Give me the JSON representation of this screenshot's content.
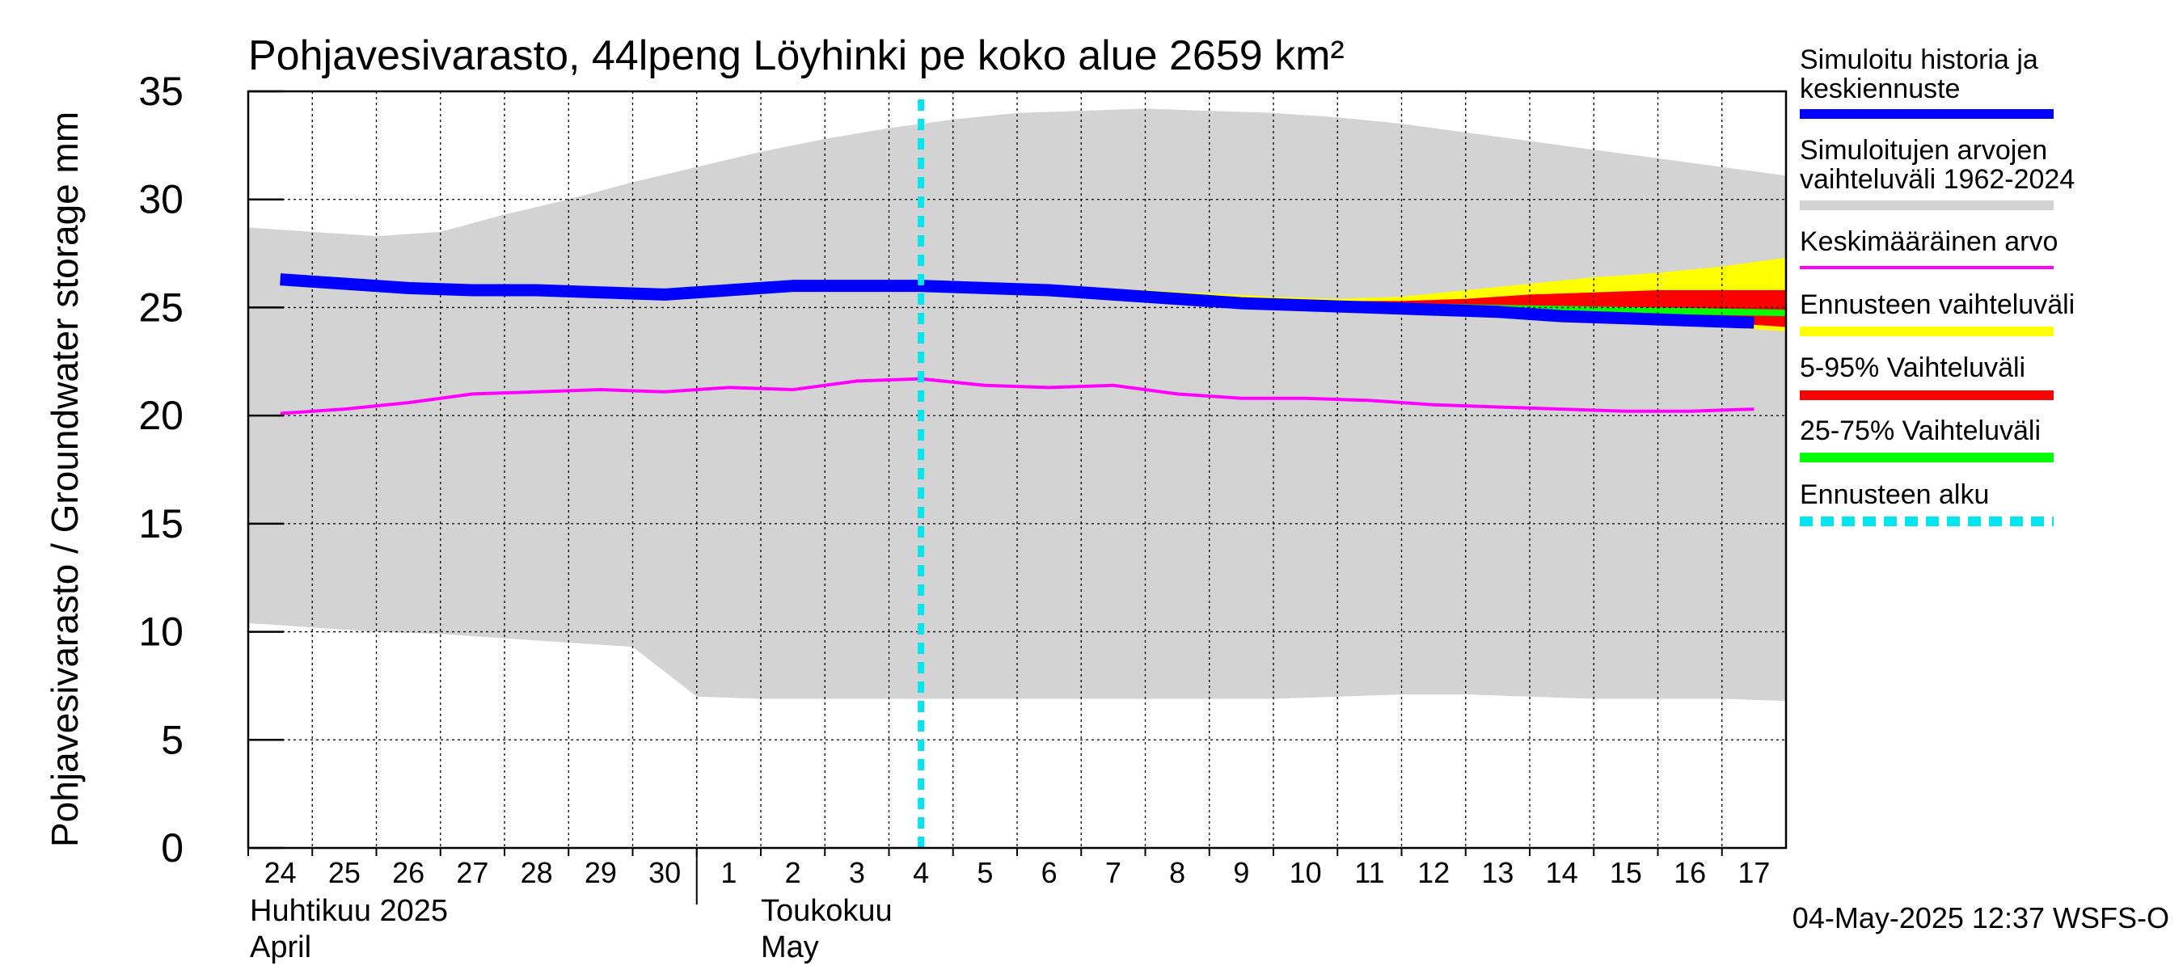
{
  "chart_data": {
    "type": "area",
    "title": "Pohjavesivarasto, 44lpeng Löyhinki pe koko alue 2659 km²",
    "ylabel": "Pohjavesivarasto / Groundwater storage   mm",
    "ylim": [
      0,
      35
    ],
    "yticks": [
      "0",
      "5",
      "10",
      "15",
      "20",
      "25",
      "30",
      "35"
    ],
    "grid": true,
    "legend_position": "right",
    "x_day_labels": [
      "24",
      "25",
      "26",
      "27",
      "28",
      "29",
      "30",
      "1",
      "2",
      "3",
      "4",
      "5",
      "6",
      "7",
      "8",
      "9",
      "10",
      "11",
      "12",
      "13",
      "14",
      "15",
      "16",
      "17"
    ],
    "x_dates": [
      "2025-04-24",
      "2025-04-25",
      "2025-04-26",
      "2025-04-27",
      "2025-04-28",
      "2025-04-29",
      "2025-04-30",
      "2025-05-01",
      "2025-05-02",
      "2025-05-03",
      "2025-05-04",
      "2025-05-05",
      "2025-05-06",
      "2025-05-07",
      "2025-05-08",
      "2025-05-09",
      "2025-05-10",
      "2025-05-11",
      "2025-05-12",
      "2025-05-13",
      "2025-05-14",
      "2025-05-15",
      "2025-05-16",
      "2025-05-17"
    ],
    "month_labels": [
      {
        "fi": "Huhtikuu  2025",
        "en": "April"
      },
      {
        "fi": "Toukokuu",
        "en": "May"
      }
    ],
    "forecast_start": "2025-05-04",
    "series": [
      {
        "name": "Simuloitu historia ja keskiennuste",
        "color": "#0000ff",
        "values": [
          26.3,
          26.1,
          25.9,
          25.8,
          25.8,
          25.7,
          25.6,
          25.8,
          26.0,
          26.0,
          26.0,
          25.9,
          25.8,
          25.6,
          25.4,
          25.2,
          25.1,
          25.0,
          24.9,
          24.8,
          24.6,
          24.5,
          24.4,
          24.3
        ]
      },
      {
        "name": "Keskimääräinen arvo",
        "color": "#ff00ff",
        "values": [
          20.1,
          20.3,
          20.6,
          21.0,
          21.1,
          21.2,
          21.1,
          21.3,
          21.2,
          21.6,
          21.7,
          21.4,
          21.3,
          21.4,
          21.0,
          20.8,
          20.8,
          20.7,
          20.5,
          20.4,
          20.3,
          20.2,
          20.2,
          20.3
        ]
      }
    ],
    "ranges": [
      {
        "name": "Simuloitujen arvojen vaihteluväli 1962-2024",
        "color": "#d3d3d3",
        "x": [
          "2025-04-24",
          "2025-04-25",
          "2025-04-26",
          "2025-04-27",
          "2025-04-28",
          "2025-04-29",
          "2025-04-30",
          "2025-05-01",
          "2025-05-02",
          "2025-05-03",
          "2025-05-04",
          "2025-05-05",
          "2025-05-06",
          "2025-05-07",
          "2025-05-08",
          "2025-05-09",
          "2025-05-10",
          "2025-05-11",
          "2025-05-12",
          "2025-05-13",
          "2025-05-14",
          "2025-05-15",
          "2025-05-16",
          "2025-05-17",
          "2025-05-18"
        ],
        "upper": [
          28.7,
          28.5,
          28.3,
          28.5,
          29.3,
          30.0,
          30.8,
          31.5,
          32.2,
          32.8,
          33.3,
          33.7,
          34.0,
          34.1,
          34.2,
          34.1,
          34.0,
          33.8,
          33.5,
          33.1,
          32.7,
          32.3,
          31.9,
          31.5,
          31.1
        ],
        "lower": [
          10.4,
          10.2,
          10.0,
          9.9,
          9.7,
          9.5,
          9.3,
          7.0,
          6.9,
          6.9,
          6.9,
          6.9,
          6.9,
          6.9,
          6.9,
          6.9,
          6.9,
          7.0,
          7.1,
          7.1,
          7.0,
          6.9,
          6.9,
          6.9,
          6.8
        ]
      },
      {
        "name": "Ennusteen vaihteluväli",
        "color": "#ffff00",
        "x": [
          "2025-05-04",
          "2025-05-06",
          "2025-05-08",
          "2025-05-10",
          "2025-05-11",
          "2025-05-12",
          "2025-05-13",
          "2025-05-14",
          "2025-05-15",
          "2025-05-16",
          "2025-05-17",
          "2025-05-18"
        ],
        "upper": [
          26.1,
          26.0,
          25.8,
          25.5,
          25.4,
          25.5,
          25.8,
          26.1,
          26.4,
          26.6,
          26.9,
          27.3
        ],
        "lower": [
          25.9,
          25.8,
          25.5,
          25.2,
          25.1,
          25.0,
          24.9,
          24.7,
          24.5,
          24.3,
          24.1,
          23.9
        ]
      },
      {
        "name": "5-95% Vaihteluväli",
        "color": "#ff0000",
        "x": [
          "2025-05-04",
          "2025-05-06",
          "2025-05-08",
          "2025-05-10",
          "2025-05-11",
          "2025-05-12",
          "2025-05-13",
          "2025-05-14",
          "2025-05-15",
          "2025-05-16",
          "2025-05-17",
          "2025-05-18"
        ],
        "upper": [
          26.0,
          25.9,
          25.6,
          25.4,
          25.3,
          25.3,
          25.4,
          25.6,
          25.7,
          25.8,
          25.8,
          25.8
        ],
        "lower": [
          25.9,
          25.8,
          25.5,
          25.2,
          25.1,
          25.0,
          24.9,
          24.7,
          24.6,
          24.5,
          24.3,
          24.1
        ]
      },
      {
        "name": "25-75% Vaihteluväli",
        "color": "#00ff00",
        "x": [
          "2025-05-04",
          "2025-05-06",
          "2025-05-08",
          "2025-05-10",
          "2025-05-12",
          "2025-05-14",
          "2025-05-16",
          "2025-05-18"
        ],
        "upper": [
          26.0,
          25.9,
          25.6,
          25.3,
          25.2,
          25.1,
          25.0,
          24.9
        ],
        "lower": [
          25.9,
          25.8,
          25.5,
          25.2,
          25.0,
          24.9,
          24.7,
          24.6
        ]
      }
    ],
    "legend": [
      {
        "label": "Simuloitu historia ja keskiennuste",
        "color": "#0000ff",
        "style": "thick"
      },
      {
        "label": "Simuloitujen arvojen vaihteluväli 1962-2024",
        "color": "#d3d3d3",
        "style": "thick"
      },
      {
        "label": "Keskimääräinen arvo",
        "color": "#ff00ff",
        "style": "thin"
      },
      {
        "label": "Ennusteen vaihteluväli",
        "color": "#ffff00",
        "style": "thick"
      },
      {
        "label": "5-95% Vaihteluväli",
        "color": "#ff0000",
        "style": "thick"
      },
      {
        "label": "25-75% Vaihteluväli",
        "color": "#00ff00",
        "style": "thick"
      },
      {
        "label": "Ennusteen alku",
        "color": "#00e5ee",
        "style": "dashed"
      }
    ],
    "footer": "04-May-2025 12:37 WSFS-O"
  }
}
